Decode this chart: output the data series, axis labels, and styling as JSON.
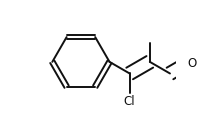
{
  "bg_color": "#ffffff",
  "line_color": "#111111",
  "line_width": 1.4,
  "dbo_ring": 0.018,
  "dbo_chain": 0.05,
  "cl_label": "Cl",
  "o_label": "O",
  "font_size_label": 8.5,
  "font_size_ch3": 7.5,
  "xlim": [
    0.0,
    1.0
  ],
  "ylim": [
    0.0,
    1.0
  ]
}
